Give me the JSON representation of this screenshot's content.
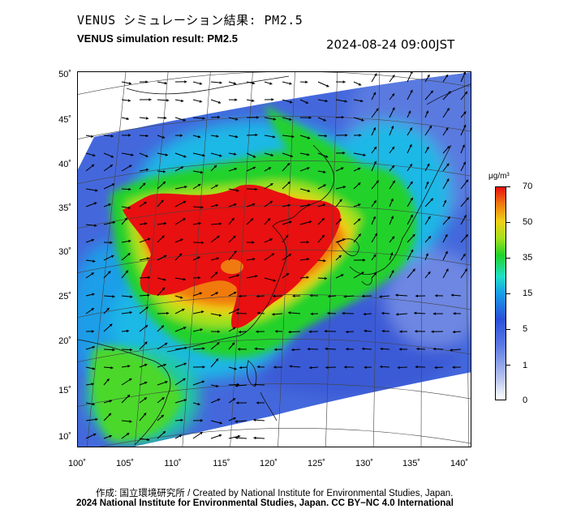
{
  "header": {
    "title_jp": "VENUS シミュレーション結果: PM2.5",
    "title_en": "VENUS simulation result: PM2.5",
    "timestamp": "2024-08-24 09:00JST"
  },
  "map": {
    "latitude_labels": [
      "50˚",
      "45˚",
      "40˚",
      "35˚",
      "30˚",
      "25˚",
      "20˚",
      "15˚",
      "10˚"
    ],
    "longitude_labels": [
      "100˚",
      "105˚",
      "110˚",
      "115˚",
      "120˚",
      "125˚",
      "130˚",
      "135˚",
      "140˚"
    ],
    "colors": {
      "land_outline": "#000000",
      "grid": "#555555",
      "wind_arrow": "#000000"
    }
  },
  "colorbar": {
    "unit": "μg/m³",
    "ticks": [
      "70",
      "50",
      "35",
      "15",
      "5",
      "1",
      "0"
    ],
    "colors": [
      "#ffffff",
      "#5f7ce4",
      "#2850d8",
      "#1a9ee8",
      "#22d22a",
      "#f0d018",
      "#f07a10",
      "#e81010"
    ]
  },
  "footer": {
    "credit_jp": "作成: 国立環境研究所 / Created by National Institute for Environmental Studies, Japan.",
    "credit_en": "2024 National Institute for Environmental Studies, Japan. CC BY−NC 4.0 International"
  }
}
